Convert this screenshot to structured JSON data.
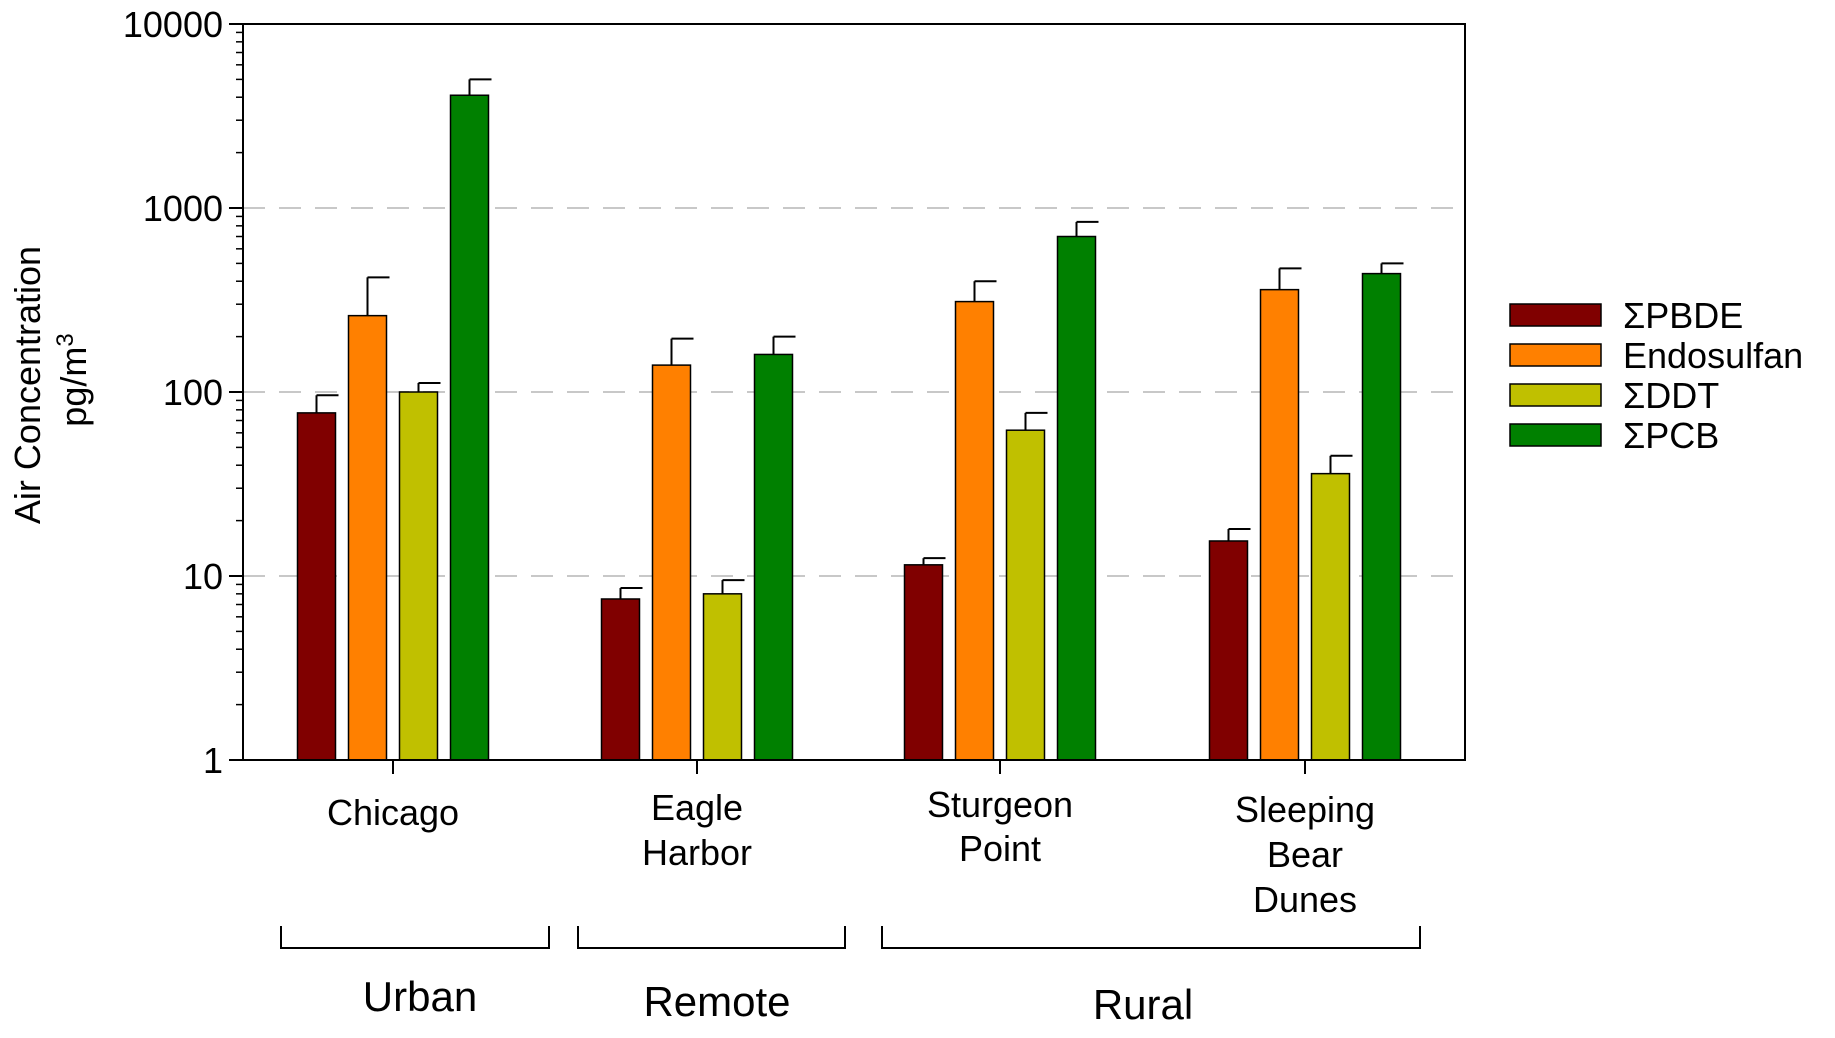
{
  "chart_data": {
    "type": "bar",
    "title": "",
    "xlabel": "",
    "ylabel": "Air Concentration",
    "ylabel_unit_base": "pg/m",
    "ylabel_unit_sup": "3",
    "yscale": "log",
    "ylim": [
      1,
      10000
    ],
    "yticks": [
      1,
      10,
      100,
      1000,
      10000
    ],
    "ytick_labels": [
      "1",
      "10",
      "100",
      "1000",
      "10000"
    ],
    "grid": "horizontal dashed at 10, 100, 1000",
    "legend_position": "right",
    "categories": [
      {
        "lines": [
          "Chicago"
        ]
      },
      {
        "lines": [
          "Eagle",
          "Harbor"
        ]
      },
      {
        "lines": [
          "Sturgeon",
          "Point"
        ]
      },
      {
        "lines": [
          "Sleeping",
          "Bear",
          "Dunes"
        ]
      }
    ],
    "groups": [
      {
        "label": "Urban",
        "categories": [
          0
        ]
      },
      {
        "label": "Remote",
        "categories": [
          1
        ]
      },
      {
        "label": "Rural",
        "categories": [
          2,
          3
        ]
      }
    ],
    "series": [
      {
        "name": "ΣPBDE",
        "color": "#800000",
        "values": [
          77,
          7.5,
          11.5,
          15.5
        ],
        "error_upper": [
          96,
          8.6,
          12.5,
          18
        ]
      },
      {
        "name": "Endosulfan",
        "color": "#ff8000",
        "values": [
          260,
          140,
          310,
          360
        ],
        "error_upper": [
          420,
          195,
          400,
          470
        ]
      },
      {
        "name": "ΣDDT",
        "color": "#c0c000",
        "values": [
          100,
          8,
          62,
          36
        ],
        "error_upper": [
          112,
          9.5,
          77,
          45
        ]
      },
      {
        "name": "ΣPCB",
        "color": "#008000",
        "values": [
          4100,
          160,
          700,
          440
        ],
        "error_upper": [
          5000,
          200,
          840,
          500
        ]
      }
    ]
  }
}
